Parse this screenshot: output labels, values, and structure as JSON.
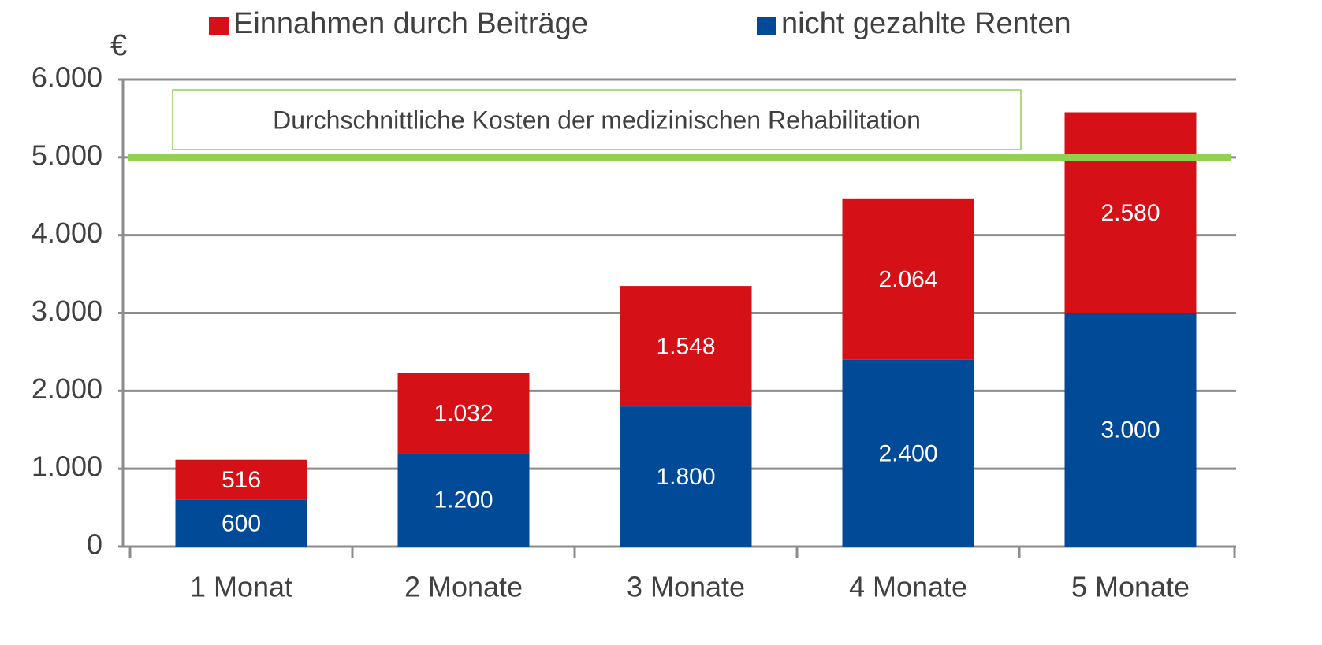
{
  "chart_data": {
    "type": "stacked_bar",
    "y_label": "€",
    "categories": [
      "1 Monat",
      "2 Monate",
      "3 Monate",
      "4 Monate",
      "5 Monate"
    ],
    "series": [
      {
        "name": "Einnahmen durch Beiträge",
        "color": "#d51016",
        "values": [
          516,
          1032,
          1548,
          2064,
          2580
        ],
        "value_labels": [
          "516",
          "1.032",
          "1.548",
          "2.064",
          "2.580"
        ]
      },
      {
        "name": "nicht gezahlte Renten",
        "color": "#004a97",
        "values": [
          600,
          1200,
          1800,
          2400,
          3000
        ],
        "value_labels": [
          "600",
          "1.200",
          "1.800",
          "2.400",
          "3.000"
        ]
      }
    ],
    "ylim": [
      0,
      6000
    ],
    "yticks": [
      0,
      {
        "value": 1000,
        "label": "1.000"
      },
      {
        "value": 2000,
        "label": "2.000"
      },
      {
        "value": 3000,
        "label": "3.000"
      },
      {
        "value": 4000,
        "label": "4.000"
      },
      {
        "value": 5000,
        "label": "5.000"
      },
      {
        "value": 6000,
        "label": "6.000"
      }
    ],
    "grid": true,
    "reference_line": {
      "value": 5000,
      "label": "Durchschnittliche Kosten der medizinischen Rehabilitation",
      "color": "#92d050"
    }
  }
}
